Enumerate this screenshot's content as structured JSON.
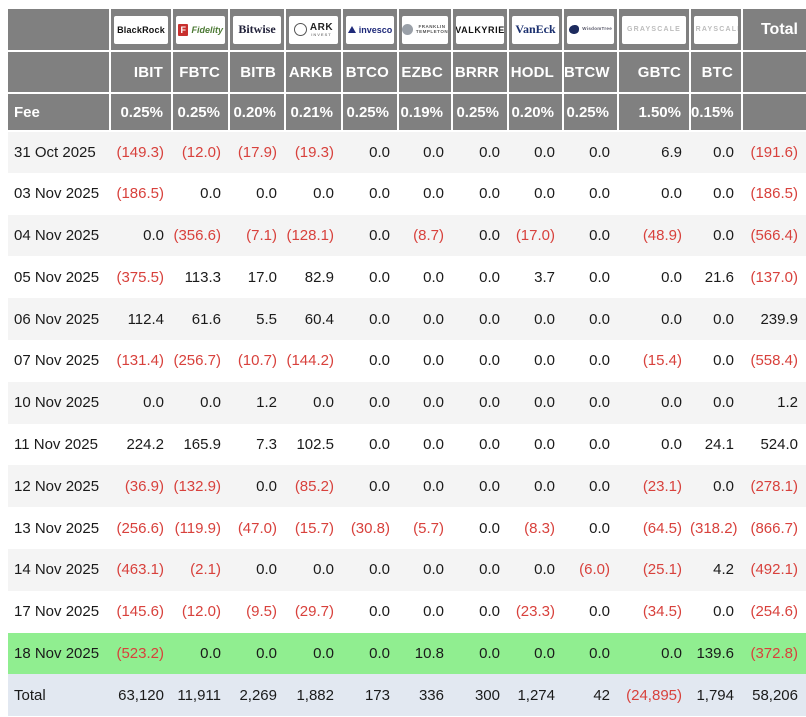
{
  "chart_data": {
    "type": "table",
    "header": {
      "issuers": [
        {
          "id": "blackrock",
          "main": "BlackRock"
        },
        {
          "id": "fidelity",
          "badge": "F",
          "main": "Fidelity"
        },
        {
          "id": "bitwise",
          "main": "Bitwise"
        },
        {
          "id": "ark",
          "icon": "ark-invest-circle-icon",
          "main": "ARK",
          "sub": "INVEST"
        },
        {
          "id": "invesco",
          "icon": "invesco-triangle-icon",
          "main": "invesco"
        },
        {
          "id": "franklin",
          "icon": "franklin-head-icon",
          "main": "FRANKLIN",
          "sub": "TEMPLETON"
        },
        {
          "id": "valkyrie",
          "main": "VALKYRIE"
        },
        {
          "id": "vaneck",
          "main": "VanEck"
        },
        {
          "id": "wisdomtree",
          "icon": "wisdomtree-bird-icon",
          "sub": "WisdomTree"
        },
        {
          "id": "grayscale",
          "main": "GRAYSCALE"
        },
        {
          "id": "grayscale2",
          "main": "GRAYSCALE"
        }
      ],
      "tickers": [
        "IBIT",
        "FBTC",
        "BITB",
        "ARKB",
        "BTCO",
        "EZBC",
        "BRRR",
        "HODL",
        "BTCW",
        "GBTC",
        "BTC"
      ],
      "fee_label": "Fee",
      "fees": [
        "0.25%",
        "0.25%",
        "0.20%",
        "0.21%",
        "0.25%",
        "0.19%",
        "0.25%",
        "0.20%",
        "0.25%",
        "1.50%",
        "0.15%"
      ],
      "total_label": "Total"
    },
    "rows": [
      {
        "date": "31 Oct 2025",
        "values": [
          "(149.3)",
          "(12.0)",
          "(17.9)",
          "(19.3)",
          "0.0",
          "0.0",
          "0.0",
          "0.0",
          "0.0",
          "6.9",
          "0.0",
          "(191.6)"
        ]
      },
      {
        "date": "03 Nov 2025",
        "values": [
          "(186.5)",
          "0.0",
          "0.0",
          "0.0",
          "0.0",
          "0.0",
          "0.0",
          "0.0",
          "0.0",
          "0.0",
          "0.0",
          "(186.5)"
        ]
      },
      {
        "date": "04 Nov 2025",
        "values": [
          "0.0",
          "(356.6)",
          "(7.1)",
          "(128.1)",
          "0.0",
          "(8.7)",
          "0.0",
          "(17.0)",
          "0.0",
          "(48.9)",
          "0.0",
          "(566.4)"
        ]
      },
      {
        "date": "05 Nov 2025",
        "values": [
          "(375.5)",
          "113.3",
          "17.0",
          "82.9",
          "0.0",
          "0.0",
          "0.0",
          "3.7",
          "0.0",
          "0.0",
          "21.6",
          "(137.0)"
        ]
      },
      {
        "date": "06 Nov 2025",
        "values": [
          "112.4",
          "61.6",
          "5.5",
          "60.4",
          "0.0",
          "0.0",
          "0.0",
          "0.0",
          "0.0",
          "0.0",
          "0.0",
          "239.9"
        ]
      },
      {
        "date": "07 Nov 2025",
        "values": [
          "(131.4)",
          "(256.7)",
          "(10.7)",
          "(144.2)",
          "0.0",
          "0.0",
          "0.0",
          "0.0",
          "0.0",
          "(15.4)",
          "0.0",
          "(558.4)"
        ]
      },
      {
        "date": "10 Nov 2025",
        "values": [
          "0.0",
          "0.0",
          "1.2",
          "0.0",
          "0.0",
          "0.0",
          "0.0",
          "0.0",
          "0.0",
          "0.0",
          "0.0",
          "1.2"
        ]
      },
      {
        "date": "11 Nov 2025",
        "values": [
          "224.2",
          "165.9",
          "7.3",
          "102.5",
          "0.0",
          "0.0",
          "0.0",
          "0.0",
          "0.0",
          "0.0",
          "24.1",
          "524.0"
        ]
      },
      {
        "date": "12 Nov 2025",
        "values": [
          "(36.9)",
          "(132.9)",
          "0.0",
          "(85.2)",
          "0.0",
          "0.0",
          "0.0",
          "0.0",
          "0.0",
          "(23.1)",
          "0.0",
          "(278.1)"
        ]
      },
      {
        "date": "13 Nov 2025",
        "values": [
          "(256.6)",
          "(119.9)",
          "(47.0)",
          "(15.7)",
          "(30.8)",
          "(5.7)",
          "0.0",
          "(8.3)",
          "0.0",
          "(64.5)",
          "(318.2)",
          "(866.7)"
        ]
      },
      {
        "date": "14 Nov 2025",
        "values": [
          "(463.1)",
          "(2.1)",
          "0.0",
          "0.0",
          "0.0",
          "0.0",
          "0.0",
          "0.0",
          "(6.0)",
          "(25.1)",
          "4.2",
          "(492.1)"
        ]
      },
      {
        "date": "17 Nov 2025",
        "values": [
          "(145.6)",
          "(12.0)",
          "(9.5)",
          "(29.7)",
          "0.0",
          "0.0",
          "0.0",
          "(23.3)",
          "0.0",
          "(34.5)",
          "0.0",
          "(254.6)"
        ]
      },
      {
        "date": "18 Nov 2025",
        "values": [
          "(523.2)",
          "0.0",
          "0.0",
          "0.0",
          "0.0",
          "10.8",
          "0.0",
          "0.0",
          "0.0",
          "0.0",
          "139.6",
          "(372.8)"
        ],
        "highlight": true
      }
    ],
    "total_row": {
      "label": "Total",
      "values": [
        "63,120",
        "11,911",
        "2,269",
        "1,882",
        "173",
        "336",
        "300",
        "1,274",
        "42",
        "(24,895)",
        "1,794",
        "58,206"
      ]
    }
  },
  "colors": {
    "header_bg": "#808080",
    "header_text": "#ffffff",
    "negative_text": "#d8413c",
    "stripe_row_bg": "#f4f4f4",
    "highlight_row_bg": "#90ee90",
    "total_row_bg": "#e2e8f1"
  }
}
